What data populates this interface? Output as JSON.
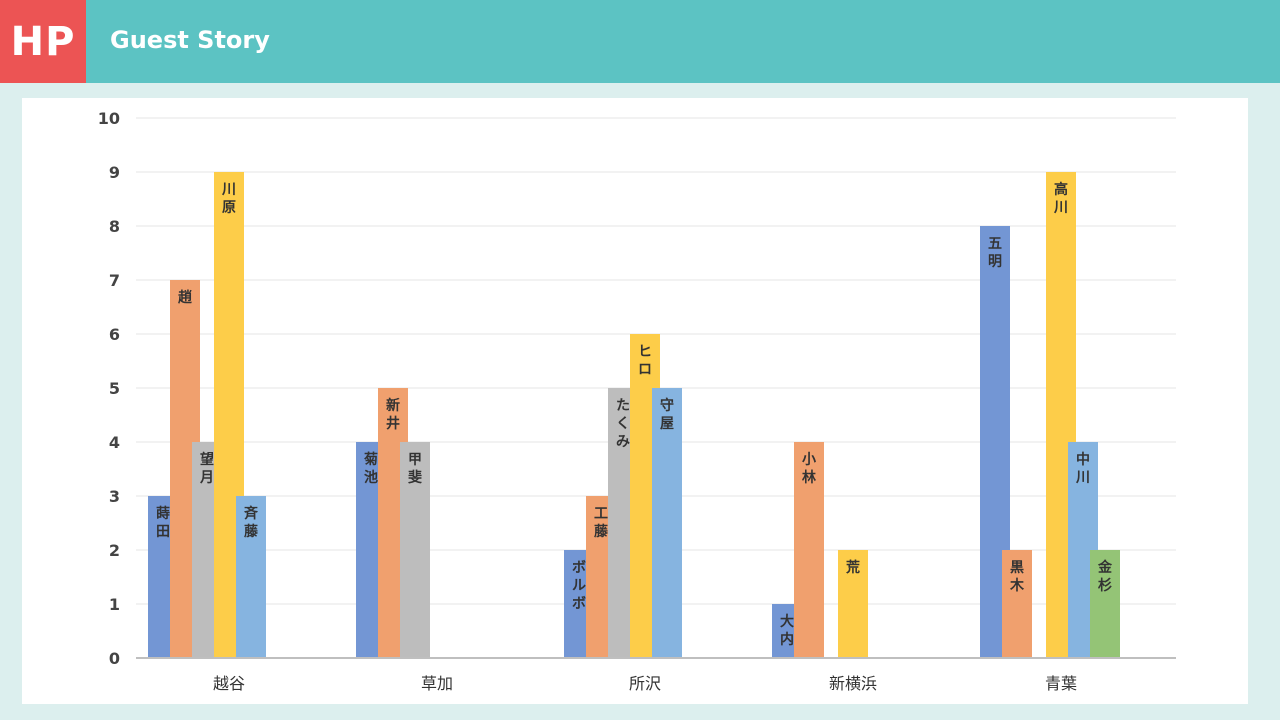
{
  "header": {
    "logo": "HP",
    "title": "Guest Story"
  },
  "colors": {
    "header_bg": "#5cc3c3",
    "logo_bg": "#ec5454",
    "series": [
      "#7396d4",
      "#f0a06e",
      "#bdbdbd",
      "#fdcd49",
      "#86b4e0",
      "#94c476"
    ]
  },
  "chart_data": {
    "type": "bar",
    "ylim": [
      0,
      10
    ],
    "yticks": [
      0,
      1,
      2,
      3,
      4,
      5,
      6,
      7,
      8,
      9,
      10
    ],
    "grid": true,
    "categories": [
      "越谷",
      "草加",
      "所沢",
      "新横浜",
      "青葉"
    ],
    "groups": [
      {
        "category": "越谷",
        "bars": [
          {
            "label": "蒔田",
            "value": 3,
            "color_index": 0
          },
          {
            "label": "趙",
            "value": 7,
            "color_index": 1
          },
          {
            "label": "望月",
            "value": 4,
            "color_index": 2
          },
          {
            "label": "川原",
            "value": 9,
            "color_index": 3
          },
          {
            "label": "斉藤",
            "value": 3,
            "color_index": 4
          }
        ]
      },
      {
        "category": "草加",
        "bars": [
          {
            "label": "菊池",
            "value": 4,
            "color_index": 0
          },
          {
            "label": "新井",
            "value": 5,
            "color_index": 1
          },
          {
            "label": "甲斐",
            "value": 4,
            "color_index": 2
          }
        ]
      },
      {
        "category": "所沢",
        "bars": [
          {
            "label": "ボルボ",
            "value": 2,
            "color_index": 0
          },
          {
            "label": "工藤",
            "value": 3,
            "color_index": 1
          },
          {
            "label": "たくみ",
            "value": 5,
            "color_index": 2
          },
          {
            "label": "ヒロ",
            "value": 6,
            "color_index": 3
          },
          {
            "label": "守屋",
            "value": 5,
            "color_index": 4
          }
        ]
      },
      {
        "category": "新横浜",
        "bars": [
          {
            "label": "大内",
            "value": 1,
            "color_index": 0
          },
          {
            "label": "小林",
            "value": 4,
            "color_index": 1
          },
          {
            "label": "",
            "value": 0,
            "color_index": 2
          },
          {
            "label": "荒",
            "value": 2,
            "color_index": 3
          }
        ]
      },
      {
        "category": "青葉",
        "bars": [
          {
            "label": "五明",
            "value": 8,
            "color_index": 0
          },
          {
            "label": "黒木",
            "value": 2,
            "color_index": 1
          },
          {
            "label": "",
            "value": 0,
            "color_index": 2
          },
          {
            "label": "高川",
            "value": 9,
            "color_index": 3
          },
          {
            "label": "中川",
            "value": 4,
            "color_index": 4
          },
          {
            "label": "金杉",
            "value": 2,
            "color_index": 5
          }
        ]
      }
    ]
  }
}
